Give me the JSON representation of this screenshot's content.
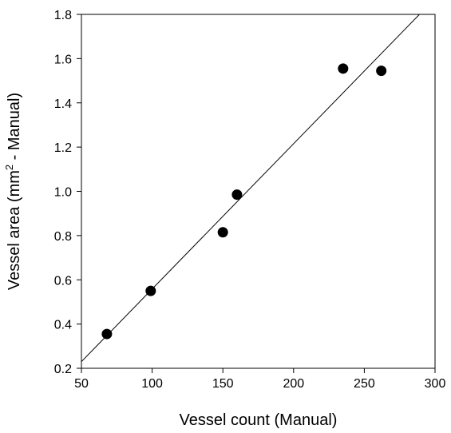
{
  "chart_data": {
    "type": "scatter",
    "title": "",
    "xlabel": "Vessel count (Manual)",
    "ylabel": {
      "prefix": "Vessel area (mm",
      "superscript": "2",
      "suffix": " - Manual)"
    },
    "xlim": [
      50,
      300
    ],
    "ylim": [
      0.2,
      1.8
    ],
    "xticks": [
      50,
      100,
      150,
      200,
      250,
      300
    ],
    "yticks": [
      0.2,
      0.4,
      0.6,
      0.8,
      1.0,
      1.2,
      1.4,
      1.6,
      1.8
    ],
    "xtick_labels": [
      "50",
      "100",
      "150",
      "200",
      "250",
      "300"
    ],
    "ytick_labels": [
      "0.2",
      "0.4",
      "0.6",
      "0.8",
      "1.0",
      "1.2",
      "1.4",
      "1.6",
      "1.8"
    ],
    "grid": false,
    "legend": "none",
    "series": [
      {
        "kind": "scatter",
        "marker": "filled-circle",
        "color": "#000000",
        "points": [
          {
            "x": 68,
            "y": 0.355
          },
          {
            "x": 99,
            "y": 0.55
          },
          {
            "x": 150,
            "y": 0.815
          },
          {
            "x": 160,
            "y": 0.985
          },
          {
            "x": 235,
            "y": 1.555
          },
          {
            "x": 262,
            "y": 1.545
          }
        ]
      },
      {
        "kind": "fit-line",
        "color": "#000000",
        "points": [
          {
            "x": 50,
            "y": 0.23
          },
          {
            "x": 289,
            "y": 1.8
          }
        ]
      }
    ]
  }
}
